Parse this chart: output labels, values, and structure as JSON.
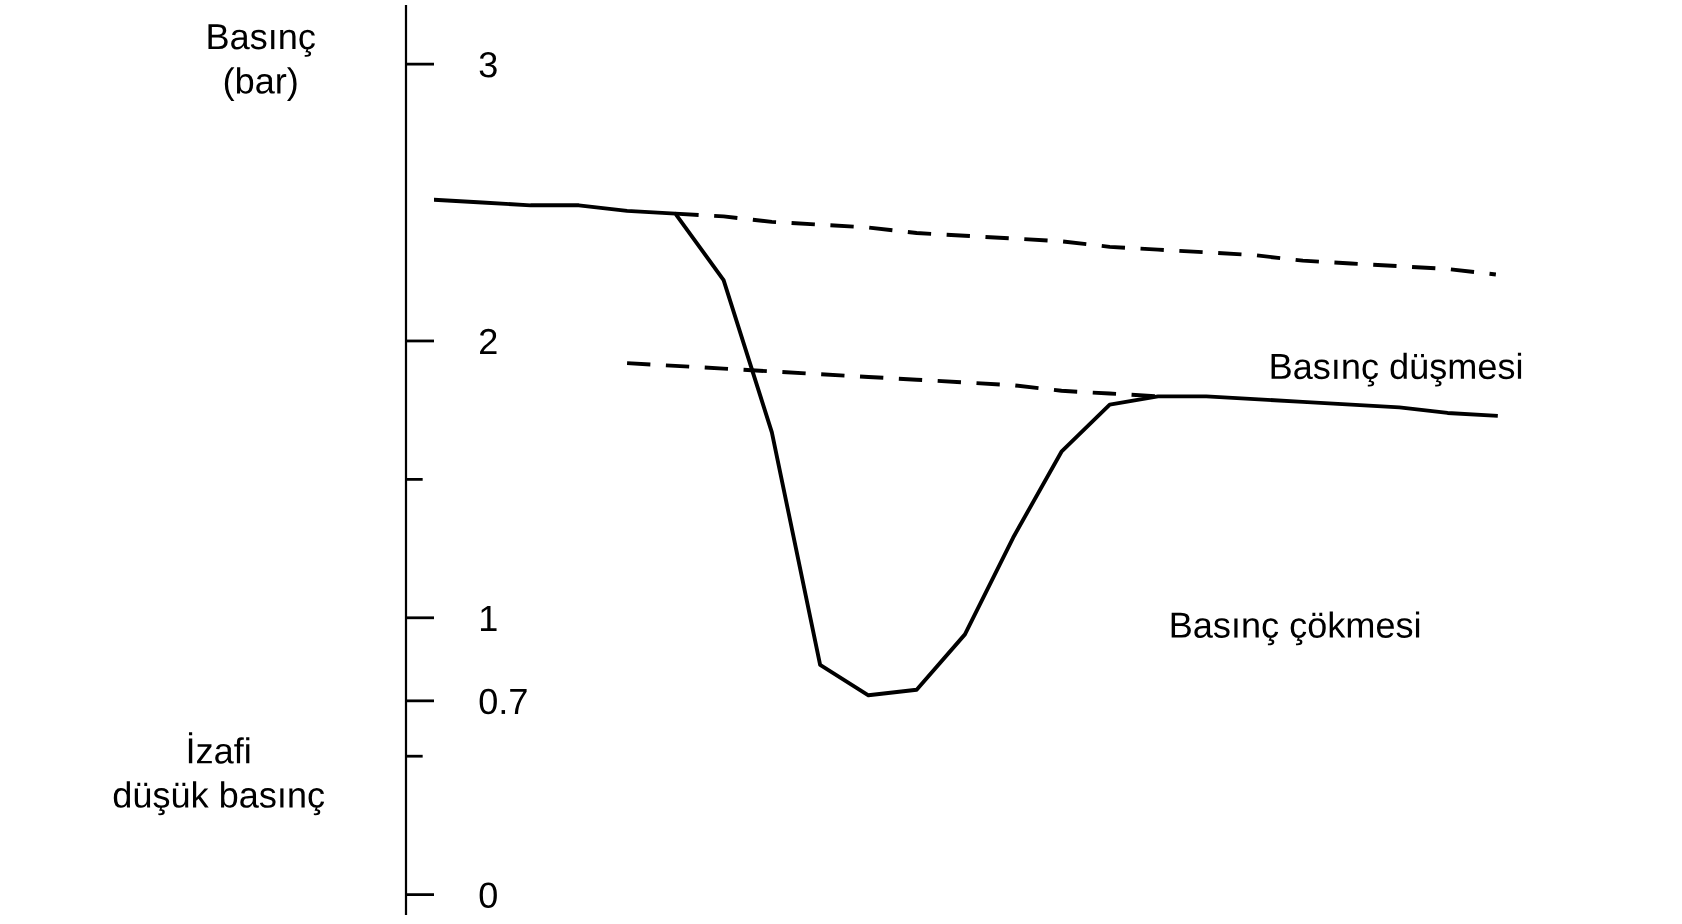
{
  "chart_data": {
    "type": "line",
    "ylabel": "Basınç\n(bar)",
    "categories": [
      null,
      null,
      null,
      null,
      null,
      null,
      null,
      null,
      null,
      null,
      null,
      null,
      null,
      null,
      null,
      null,
      null,
      null,
      null,
      null,
      null,
      null,
      null
    ],
    "series": [
      {
        "color": "#000000",
        "line_style": "solid",
        "values": [
          2.51,
          2.5,
          2.49,
          2.49,
          2.47,
          2.46,
          2.22,
          1.67,
          0.83,
          0.72,
          0.74,
          0.94,
          1.29,
          1.6,
          1.77,
          1.8,
          1.8,
          1.79,
          1.78,
          1.77,
          1.76,
          1.74,
          1.73
        ]
      },
      {
        "color": "#000000",
        "line_style": "dashed",
        "values": [
          null,
          null,
          null,
          null,
          null,
          2.46,
          2.45,
          2.43,
          2.42,
          2.41,
          2.39,
          2.38,
          2.37,
          2.36,
          2.34,
          2.33,
          2.32,
          2.31,
          2.29,
          2.28,
          2.27,
          2.26,
          2.24
        ]
      },
      {
        "color": "#000000",
        "line_style": "dashed",
        "values": [
          null,
          null,
          null,
          null,
          1.92,
          1.91,
          1.9,
          1.89,
          1.88,
          1.87,
          1.86,
          1.85,
          1.84,
          1.82,
          1.81,
          1.8,
          null,
          null,
          null,
          null,
          null,
          null,
          null
        ]
      }
    ],
    "ylim": [
      -0.07,
      3.21
    ],
    "yticks": [
      0,
      {
        "value": 0.5,
        "label": null
      },
      0.7,
      1,
      {
        "value": 1.5,
        "label": null
      },
      2,
      3
    ],
    "tick_labels": "y",
    "grid": false,
    "legend": false,
    "marker": "none",
    "annotations": [
      "Basınç düşmesi",
      "Basınç çökmesi",
      "İzafi\ndüşük basınç"
    ]
  }
}
